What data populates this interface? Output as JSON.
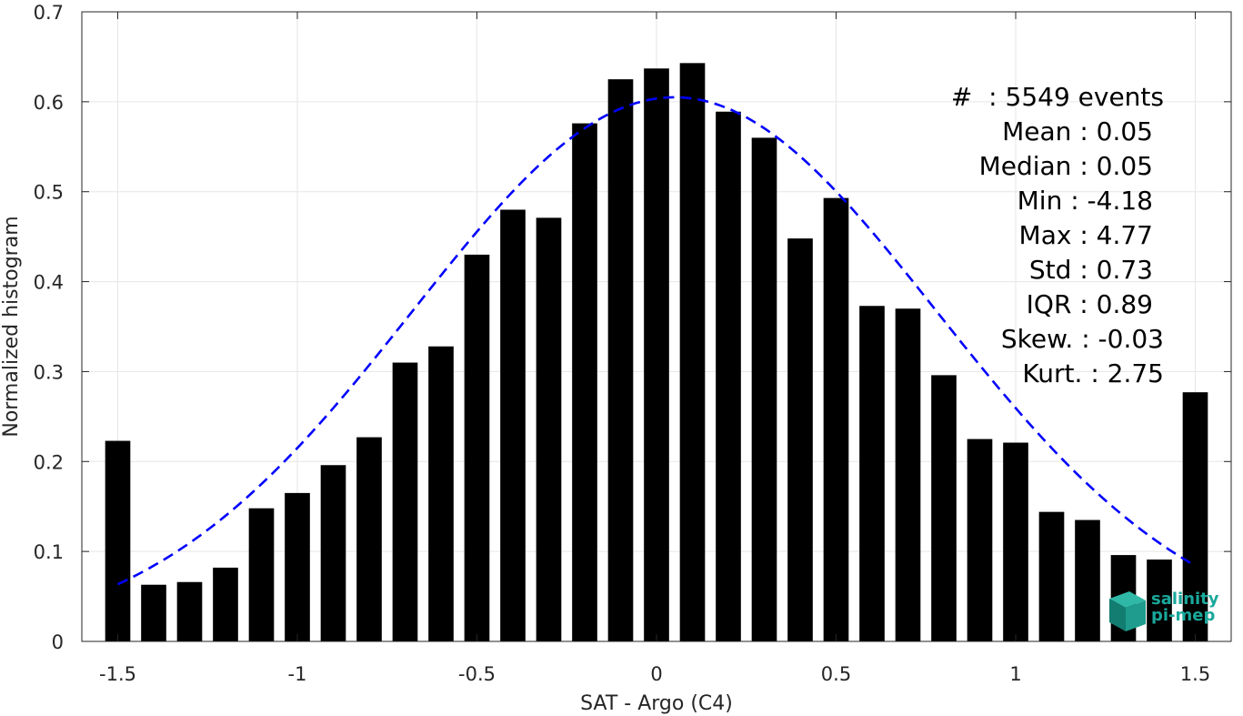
{
  "chart_data": {
    "type": "bar",
    "xlabel": "SAT - Argo (C4)",
    "ylabel": "Normalized histogram",
    "xlim": [
      -1.6,
      1.6
    ],
    "ylim": [
      0,
      0.7
    ],
    "xticks": [
      -1.5,
      -1,
      -0.5,
      0,
      0.5,
      1,
      1.5
    ],
    "xtick_labels": [
      "-1.5",
      "-1",
      "-0.5",
      "0",
      "0.5",
      "1",
      "1.5"
    ],
    "yticks": [
      0,
      0.1,
      0.2,
      0.3,
      0.4,
      0.5,
      0.6,
      0.7
    ],
    "ytick_labels": [
      "0",
      "0.1",
      "0.2",
      "0.3",
      "0.4",
      "0.5",
      "0.6",
      "0.7"
    ],
    "grid": true,
    "bar_width": 0.07,
    "bars": {
      "x": [
        -1.5,
        -1.4,
        -1.3,
        -1.2,
        -1.1,
        -1.0,
        -0.9,
        -0.8,
        -0.7,
        -0.6,
        -0.5,
        -0.4,
        -0.3,
        -0.2,
        -0.1,
        0.0,
        0.1,
        0.2,
        0.3,
        0.4,
        0.5,
        0.6,
        0.7,
        0.8,
        0.9,
        1.0,
        1.1,
        1.2,
        1.3,
        1.4,
        1.5
      ],
      "values": [
        0.223,
        0.063,
        0.066,
        0.082,
        0.148,
        0.165,
        0.196,
        0.227,
        0.31,
        0.328,
        0.43,
        0.48,
        0.471,
        0.576,
        0.625,
        0.637,
        0.643,
        0.589,
        0.56,
        0.448,
        0.493,
        0.373,
        0.37,
        0.296,
        0.225,
        0.221,
        0.144,
        0.135,
        0.096,
        0.091,
        0.277
      ],
      "color": "#000000"
    },
    "fit": {
      "type": "gaussian",
      "mean": 0.05,
      "std": 0.73,
      "peak": 0.605,
      "x_range": [
        -1.5,
        1.5
      ],
      "style": "dashed",
      "color": "#0000ff"
    },
    "annotations": {
      "count": "#  : 5549 events",
      "mean": "Mean : 0.05",
      "median": "Median : 0.05",
      "min": "Min : -4.18",
      "max": "Max : 4.77",
      "std": "Std : 0.73",
      "iqr": "IQR : 0.89",
      "skew": "Skew. : -0.03",
      "kurt": "Kurt. : 2.75"
    }
  },
  "logo": {
    "line1": "salinity",
    "line2": "pi-mep",
    "color": "#1aa89b"
  }
}
